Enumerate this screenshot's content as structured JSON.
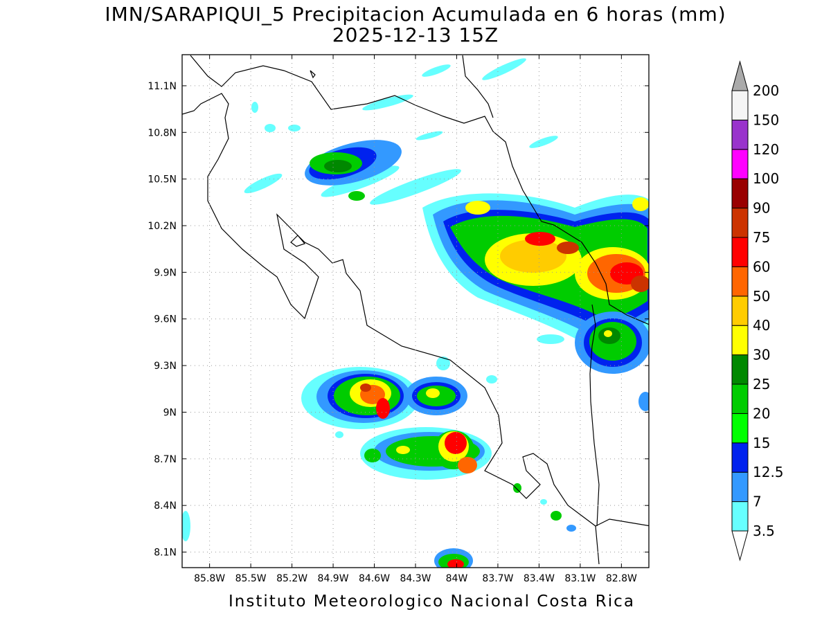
{
  "title": {
    "line1": "IMN/SARAPIQUI_5 Precipitacion Acumulada en 6 horas (mm)",
    "line2": "2025-12-13 15Z"
  },
  "footer": "Instituto Meteorologico Nacional Costa Rica",
  "map": {
    "lon_range": [
      -86.0,
      -82.6
    ],
    "lat_range": [
      8.0,
      11.3
    ],
    "x_ticks": [
      {
        "value": -85.8,
        "label": "85.8W"
      },
      {
        "value": -85.5,
        "label": "85.5W"
      },
      {
        "value": -85.2,
        "label": "85.2W"
      },
      {
        "value": -84.9,
        "label": "84.9W"
      },
      {
        "value": -84.6,
        "label": "84.6W"
      },
      {
        "value": -84.3,
        "label": "84.3W"
      },
      {
        "value": -84.0,
        "label": "84W"
      },
      {
        "value": -83.7,
        "label": "83.7W"
      },
      {
        "value": -83.4,
        "label": "83.4W"
      },
      {
        "value": -83.1,
        "label": "83.1W"
      },
      {
        "value": -82.8,
        "label": "82.8W"
      }
    ],
    "y_ticks": [
      {
        "value": 11.1,
        "label": "11.1N"
      },
      {
        "value": 10.8,
        "label": "10.8N"
      },
      {
        "value": 10.5,
        "label": "10.5N"
      },
      {
        "value": 10.2,
        "label": "10.2N"
      },
      {
        "value": 9.9,
        "label": "9.9N"
      },
      {
        "value": 9.6,
        "label": "9.6N"
      },
      {
        "value": 9.3,
        "label": "9.3N"
      },
      {
        "value": 9.0,
        "label": "9N"
      },
      {
        "value": 8.7,
        "label": "8.7N"
      },
      {
        "value": 8.4,
        "label": "8.4N"
      },
      {
        "value": 8.1,
        "label": "8.1N"
      }
    ],
    "grid": true
  },
  "colorbar": {
    "levels": [
      "3.5",
      "7",
      "12.5",
      "15",
      "20",
      "25",
      "30",
      "40",
      "50",
      "60",
      "75",
      "90",
      "100",
      "120",
      "150",
      "200"
    ],
    "colors": [
      "#66ffff",
      "#3399ff",
      "#0022ee",
      "#00ff00",
      "#00cc00",
      "#008800",
      "#ffff00",
      "#ffcc00",
      "#ff6600",
      "#ff0000",
      "#cc3300",
      "#990000",
      "#ff00ff",
      "#9933cc",
      "#f5f5f5"
    ],
    "top_arrow_color": "#aaaaaa",
    "bottom_arrow_color": "#ffffff"
  }
}
